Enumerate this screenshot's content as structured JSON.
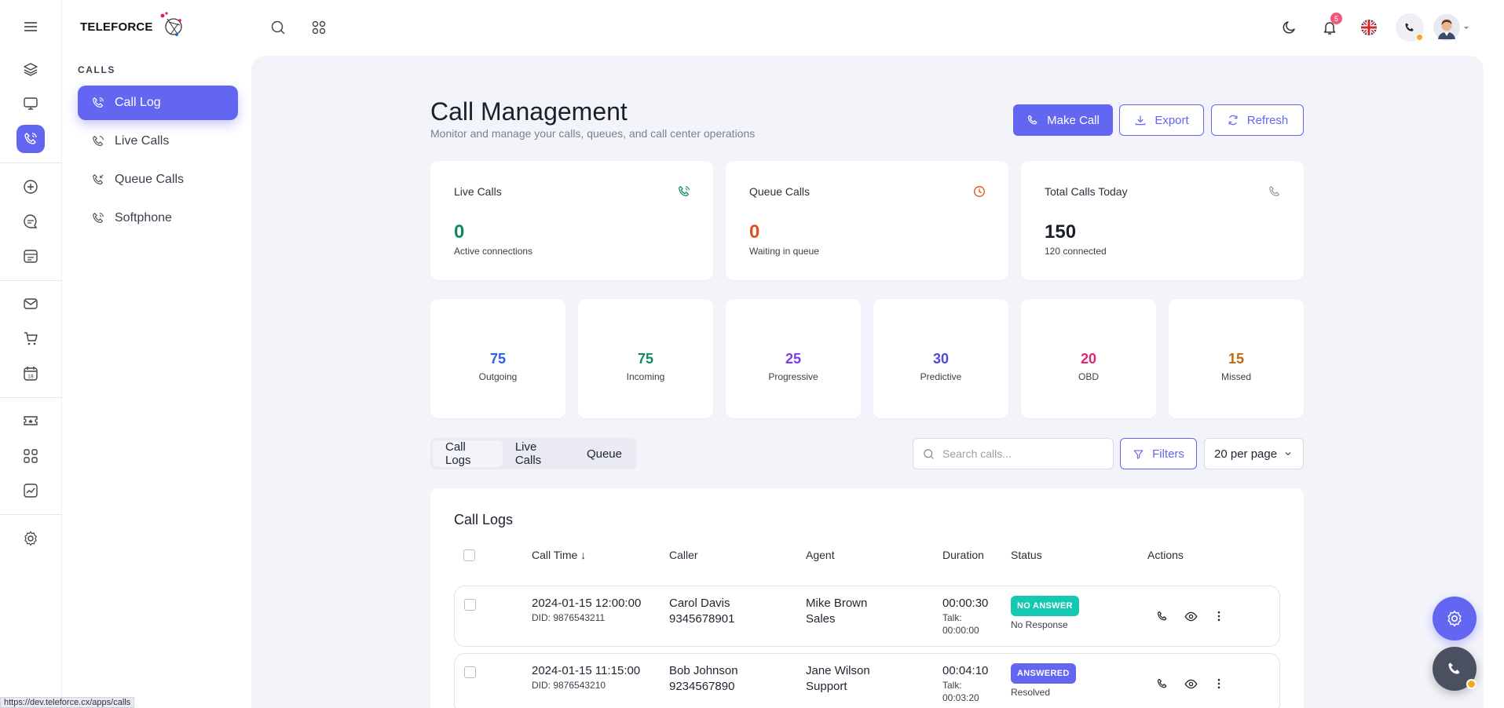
{
  "brand": {
    "logo_text": "TELEFORCE"
  },
  "sidebar": {
    "section_label": "CALLS",
    "items": [
      {
        "label": "Call Log",
        "icon": "phone-call-icon",
        "active": true
      },
      {
        "label": "Live Calls",
        "icon": "phone-incoming-icon"
      },
      {
        "label": "Queue Calls",
        "icon": "phone-queue-icon"
      },
      {
        "label": "Softphone",
        "icon": "softphone-icon"
      }
    ]
  },
  "rail": {
    "icons": [
      "menu-icon",
      "layers-icon",
      "monitor-icon",
      "phone-icon",
      "plus-circle-icon",
      "chat-icon",
      "calendar-board-icon",
      "mail-icon",
      "cart-icon",
      "calendar-icon",
      "ticket-icon",
      "apps-grid-icon",
      "chart-icon",
      "settings-icon"
    ]
  },
  "topbar": {
    "notification_count": "5"
  },
  "header": {
    "title": "Call Management",
    "subtitle": "Monitor and manage your calls, queues, and call center operations",
    "make_call_label": "Make Call",
    "export_label": "Export",
    "refresh_label": "Refresh"
  },
  "stats": [
    {
      "title": "Live Calls",
      "value": "0",
      "sub": "Active connections",
      "color": "#0f8a5f"
    },
    {
      "title": "Queue Calls",
      "value": "0",
      "sub": "Waiting in queue",
      "color": "#e0501b"
    },
    {
      "title": "Total Calls Today",
      "value": "150",
      "sub": "120 connected",
      "color": "#1b1f2a"
    }
  ],
  "mini_stats": [
    {
      "value": "75",
      "label": "Outgoing",
      "color": "#2563eb"
    },
    {
      "value": "75",
      "label": "Incoming",
      "color": "#0f8a5f"
    },
    {
      "value": "25",
      "label": "Progressive",
      "color": "#7c3aed"
    },
    {
      "value": "30",
      "label": "Predictive",
      "color": "#4f46e5"
    },
    {
      "value": "20",
      "label": "OBD",
      "color": "#db2777"
    },
    {
      "value": "15",
      "label": "Missed",
      "color": "#c2680a"
    }
  ],
  "tabs": [
    {
      "label": "Call Logs",
      "active": true
    },
    {
      "label": "Live Calls"
    },
    {
      "label": "Queue"
    }
  ],
  "search": {
    "placeholder": "Search calls..."
  },
  "filters_label": "Filters",
  "per_page": "20 per page",
  "table": {
    "title": "Call Logs",
    "columns": [
      "Call Time ↓",
      "Caller",
      "Agent",
      "Duration",
      "Status",
      "Actions"
    ],
    "rows": [
      {
        "time": "2024-01-15 12:00:00",
        "did": "DID: 9876543211",
        "caller": "Carol Davis",
        "caller_num": "9345678901",
        "agent": "Mike Brown",
        "team": "Sales",
        "duration": "00:00:30",
        "talk": "Talk:",
        "talk_time": "00:00:00",
        "status": "NO ANSWER",
        "status_color": "#14c8b4",
        "status_note": "No Response"
      },
      {
        "time": "2024-01-15 11:15:00",
        "did": "DID: 9876543210",
        "caller": "Bob Johnson",
        "caller_num": "9234567890",
        "agent": "Jane Wilson",
        "team": "Support",
        "duration": "00:04:10",
        "talk": "Talk:",
        "talk_time": "00:03:20",
        "status": "ANSWERED",
        "status_color": "#6366f1",
        "status_note": "Resolved"
      }
    ]
  },
  "status_url": "https://dev.teleforce.cx/apps/calls"
}
